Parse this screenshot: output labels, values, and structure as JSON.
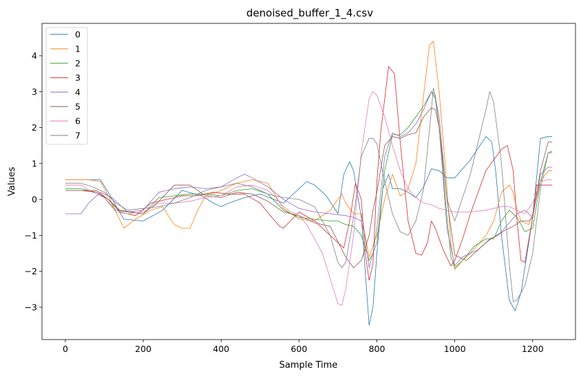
{
  "chart_data": {
    "type": "line",
    "title": "denoised_buffer_1_4.csv",
    "xlabel": "Sample Time",
    "ylabel": "Values",
    "xlim": [
      -60,
      1310
    ],
    "ylim": [
      -3.9,
      4.9
    ],
    "xticks": [
      0,
      200,
      400,
      600,
      800,
      1000,
      1200
    ],
    "yticks": [
      -3,
      -2,
      -1,
      0,
      1,
      2,
      3,
      4
    ],
    "grid": false,
    "legend_position": "top-left",
    "series": [
      {
        "name": "0",
        "color": "#1f77b4",
        "x": [
          0,
          30,
          60,
          90,
          110,
          150,
          200,
          250,
          300,
          350,
          380,
          400,
          420,
          460,
          500,
          560,
          600,
          620,
          640,
          670,
          700,
          715,
          730,
          740,
          760,
          780,
          790,
          800,
          815,
          830,
          840,
          860,
          880,
          900,
          920,
          940,
          960,
          980,
          1000,
          1040,
          1080,
          1095,
          1105,
          1120,
          1140,
          1155,
          1170,
          1200,
          1220,
          1240,
          1250
        ],
        "y": [
          0.55,
          0.55,
          0.55,
          0.55,
          0.2,
          -0.55,
          -0.6,
          -0.3,
          0.25,
          0.1,
          -0.1,
          -0.2,
          -0.1,
          0.05,
          0.15,
          -0.1,
          0.3,
          0.5,
          0.4,
          0.1,
          -0.4,
          0.7,
          1.05,
          0.8,
          -0.5,
          -3.5,
          -3.0,
          -1.5,
          0.3,
          0.7,
          0.3,
          0.3,
          0.2,
          0.05,
          0.35,
          0.85,
          0.8,
          0.6,
          0.6,
          1.1,
          1.75,
          1.6,
          0.8,
          -1.0,
          -2.8,
          -3.1,
          -2.6,
          -0.5,
          1.7,
          1.75,
          1.75
        ]
      },
      {
        "name": "1",
        "color": "#ff7f0e",
        "x": [
          0,
          30,
          60,
          90,
          110,
          130,
          150,
          180,
          220,
          250,
          270,
          280,
          300,
          320,
          340,
          360,
          400,
          440,
          480,
          520,
          560,
          600,
          640,
          680,
          700,
          710,
          720,
          740,
          760,
          780,
          800,
          820,
          840,
          860,
          870,
          880,
          900,
          920,
          935,
          945,
          960,
          975,
          990,
          1000,
          1020,
          1040,
          1080,
          1100,
          1120,
          1140,
          1150,
          1160,
          1170,
          1190,
          1200,
          1220,
          1240,
          1250
        ],
        "y": [
          0.55,
          0.55,
          0.55,
          0.5,
          0.1,
          -0.35,
          -0.8,
          -0.55,
          -0.3,
          -0.2,
          -0.55,
          -0.7,
          -0.8,
          -0.8,
          -0.3,
          0.1,
          0.25,
          0.45,
          0.55,
          0.45,
          -0.25,
          -0.55,
          -0.6,
          -0.3,
          0.0,
          0.15,
          -0.1,
          -0.4,
          -0.4,
          -1.6,
          -1.0,
          0.0,
          0.7,
          0.1,
          0.15,
          0.3,
          1.0,
          2.9,
          4.3,
          4.4,
          3.0,
          1.0,
          -1.2,
          -1.95,
          -1.7,
          -1.5,
          -1.0,
          -0.6,
          0.2,
          0.4,
          0.2,
          -0.3,
          -0.6,
          -0.7,
          -0.4,
          0.5,
          0.8,
          0.8
        ]
      },
      {
        "name": "2",
        "color": "#2ca02c",
        "x": [
          0,
          40,
          80,
          100,
          130,
          160,
          200,
          240,
          280,
          320,
          360,
          400,
          440,
          480,
          520,
          560,
          600,
          640,
          680,
          700,
          720,
          740,
          760,
          780,
          790,
          800,
          820,
          840,
          860,
          880,
          900,
          920,
          940,
          950,
          960,
          980,
          990,
          1000,
          1020,
          1050,
          1080,
          1100,
          1120,
          1140,
          1160,
          1180,
          1200,
          1220,
          1240,
          1250
        ],
        "y": [
          0.3,
          0.3,
          0.2,
          0.05,
          -0.3,
          -0.35,
          -0.4,
          0.05,
          0.1,
          0.15,
          0.15,
          0.1,
          0.25,
          0.3,
          0.15,
          -0.3,
          -0.5,
          -0.55,
          -0.6,
          -0.6,
          -0.7,
          -0.75,
          -1.0,
          -1.7,
          -1.5,
          -1.2,
          0.8,
          1.8,
          1.8,
          2.0,
          2.3,
          2.6,
          3.0,
          2.8,
          2.0,
          -0.5,
          -1.6,
          -1.9,
          -1.7,
          -1.3,
          -1.1,
          -1.1,
          -0.6,
          -0.3,
          -0.5,
          -0.9,
          -0.8,
          0.5,
          1.3,
          1.35
        ]
      },
      {
        "name": "3",
        "color": "#d62728",
        "x": [
          0,
          40,
          80,
          110,
          140,
          180,
          220,
          260,
          300,
          340,
          380,
          420,
          460,
          500,
          530,
          550,
          560,
          600,
          640,
          680,
          700,
          715,
          730,
          745,
          760,
          770,
          780,
          790,
          800,
          810,
          830,
          845,
          860,
          880,
          900,
          915,
          930,
          940,
          950,
          970,
          990,
          1000,
          1020,
          1040,
          1080,
          1100,
          1120,
          1135,
          1150,
          1160,
          1170,
          1180,
          1200,
          1210,
          1240,
          1250
        ],
        "y": [
          0.25,
          0.25,
          0.25,
          0.0,
          -0.35,
          -0.45,
          -0.1,
          0.0,
          0.1,
          0.1,
          0.2,
          0.15,
          0.15,
          -0.1,
          -0.5,
          -0.75,
          -0.8,
          -0.35,
          -0.6,
          -1.0,
          -1.2,
          -1.35,
          -0.6,
          0.45,
          0.0,
          -1.5,
          -2.25,
          -1.8,
          0.5,
          1.9,
          3.7,
          3.5,
          1.6,
          -0.6,
          -1.5,
          -1.55,
          -1.2,
          -0.6,
          -0.8,
          -1.4,
          -1.85,
          -1.7,
          -1.1,
          -0.4,
          0.8,
          1.1,
          1.4,
          1.5,
          0.8,
          -0.6,
          -1.7,
          -1.75,
          -0.5,
          0.4,
          0.4,
          0.4
        ]
      },
      {
        "name": "4",
        "color": "#9467bd",
        "x": [
          0,
          20,
          40,
          60,
          90,
          120,
          160,
          200,
          240,
          280,
          320,
          360,
          400,
          440,
          460,
          480,
          520,
          560,
          600,
          640,
          680,
          720,
          740,
          760,
          770,
          780,
          790,
          800,
          820,
          840,
          860,
          880,
          900,
          920,
          940,
          950,
          960,
          980,
          1000,
          1020,
          1060,
          1080,
          1100,
          1120,
          1140,
          1160,
          1180,
          1200,
          1220,
          1240,
          1250
        ],
        "y": [
          -0.4,
          -0.4,
          -0.4,
          -0.1,
          0.2,
          0.05,
          -0.35,
          -0.3,
          0.2,
          0.3,
          0.35,
          0.3,
          0.35,
          0.6,
          0.7,
          0.6,
          0.35,
          0.0,
          -0.25,
          -0.35,
          -0.4,
          -0.45,
          -0.5,
          -0.6,
          -1.1,
          -1.9,
          -1.5,
          -0.8,
          1.2,
          1.85,
          1.75,
          1.85,
          2.1,
          2.5,
          3.0,
          2.9,
          2.0,
          -0.8,
          -1.85,
          -1.6,
          -1.4,
          -1.2,
          -1.05,
          -0.9,
          -0.65,
          -0.4,
          -0.3,
          -0.5,
          0.7,
          0.9,
          0.9
        ]
      },
      {
        "name": "5",
        "color": "#8c564b",
        "x": [
          0,
          40,
          80,
          110,
          140,
          170,
          200,
          240,
          280,
          320,
          360,
          400,
          440,
          480,
          520,
          560,
          600,
          640,
          680,
          720,
          740,
          760,
          780,
          790,
          800,
          820,
          840,
          860,
          880,
          900,
          920,
          940,
          950,
          960,
          980,
          1000,
          1030,
          1060,
          1090,
          1110,
          1130,
          1150,
          1170,
          1190,
          1200,
          1220,
          1240,
          1250
        ],
        "y": [
          0.25,
          0.25,
          0.2,
          0.0,
          -0.3,
          -0.35,
          -0.4,
          -0.05,
          0.4,
          0.4,
          0.1,
          0.05,
          0.2,
          0.15,
          -0.05,
          -0.35,
          -0.45,
          -0.65,
          -0.75,
          -1.6,
          -1.9,
          -1.7,
          -1.0,
          -0.3,
          0.2,
          1.5,
          1.75,
          1.7,
          1.8,
          1.85,
          2.3,
          2.55,
          2.5,
          2.0,
          0.0,
          -1.55,
          -1.7,
          -1.4,
          -1.1,
          -1.0,
          -0.85,
          -0.75,
          -0.6,
          -0.6,
          -0.5,
          0.8,
          1.6,
          1.6
        ]
      },
      {
        "name": "6",
        "color": "#e377c2",
        "x": [
          0,
          40,
          70,
          100,
          130,
          160,
          200,
          240,
          280,
          320,
          360,
          400,
          440,
          480,
          520,
          540,
          560,
          580,
          600,
          620,
          640,
          660,
          680,
          700,
          710,
          720,
          740,
          760,
          780,
          790,
          800,
          820,
          840,
          860,
          880,
          900,
          920,
          940,
          960,
          1000,
          1040,
          1080,
          1100,
          1120,
          1140,
          1160,
          1180,
          1200,
          1220,
          1240,
          1250
        ],
        "y": [
          0.4,
          0.4,
          0.2,
          0.05,
          -0.35,
          -0.4,
          -0.35,
          -0.1,
          -0.1,
          -0.05,
          0.05,
          0.1,
          0.35,
          0.4,
          0.25,
          0.05,
          -0.2,
          -0.35,
          -0.45,
          -0.7,
          -1.1,
          -1.5,
          -2.2,
          -2.9,
          -2.95,
          -2.5,
          -1.0,
          1.3,
          2.8,
          3.0,
          2.9,
          2.3,
          1.5,
          0.8,
          0.3,
          0.05,
          -0.1,
          -0.15,
          -0.25,
          -0.35,
          -0.35,
          -0.3,
          -0.25,
          -0.2,
          -0.2,
          -0.3,
          -0.4,
          -0.1,
          0.5,
          0.55,
          0.55
        ]
      },
      {
        "name": "7",
        "color": "#7f7f7f",
        "x": [
          0,
          40,
          70,
          100,
          130,
          160,
          200,
          240,
          280,
          320,
          360,
          400,
          440,
          480,
          520,
          560,
          600,
          640,
          680,
          700,
          710,
          720,
          740,
          760,
          780,
          790,
          800,
          820,
          840,
          860,
          880,
          900,
          920,
          940,
          945,
          960,
          980,
          1000,
          1040,
          1080,
          1090,
          1100,
          1120,
          1140,
          1150,
          1160,
          1180,
          1200,
          1220,
          1240,
          1250
        ],
        "y": [
          0.45,
          0.45,
          0.35,
          0.2,
          -0.1,
          -0.3,
          -0.25,
          -0.2,
          -0.1,
          0.05,
          0.25,
          0.35,
          0.45,
          0.35,
          0.15,
          0.05,
          0.0,
          -0.2,
          -1.0,
          -1.75,
          -1.9,
          -1.75,
          -0.5,
          1.2,
          1.7,
          1.7,
          1.55,
          0.5,
          -0.4,
          -0.9,
          -1.0,
          -0.6,
          0.3,
          2.5,
          3.1,
          2.3,
          0.0,
          -0.6,
          0.7,
          2.5,
          3.0,
          2.7,
          1.0,
          -1.8,
          -2.85,
          -2.8,
          -2.4,
          -1.5,
          0.3,
          1.3,
          1.3
        ]
      }
    ]
  }
}
